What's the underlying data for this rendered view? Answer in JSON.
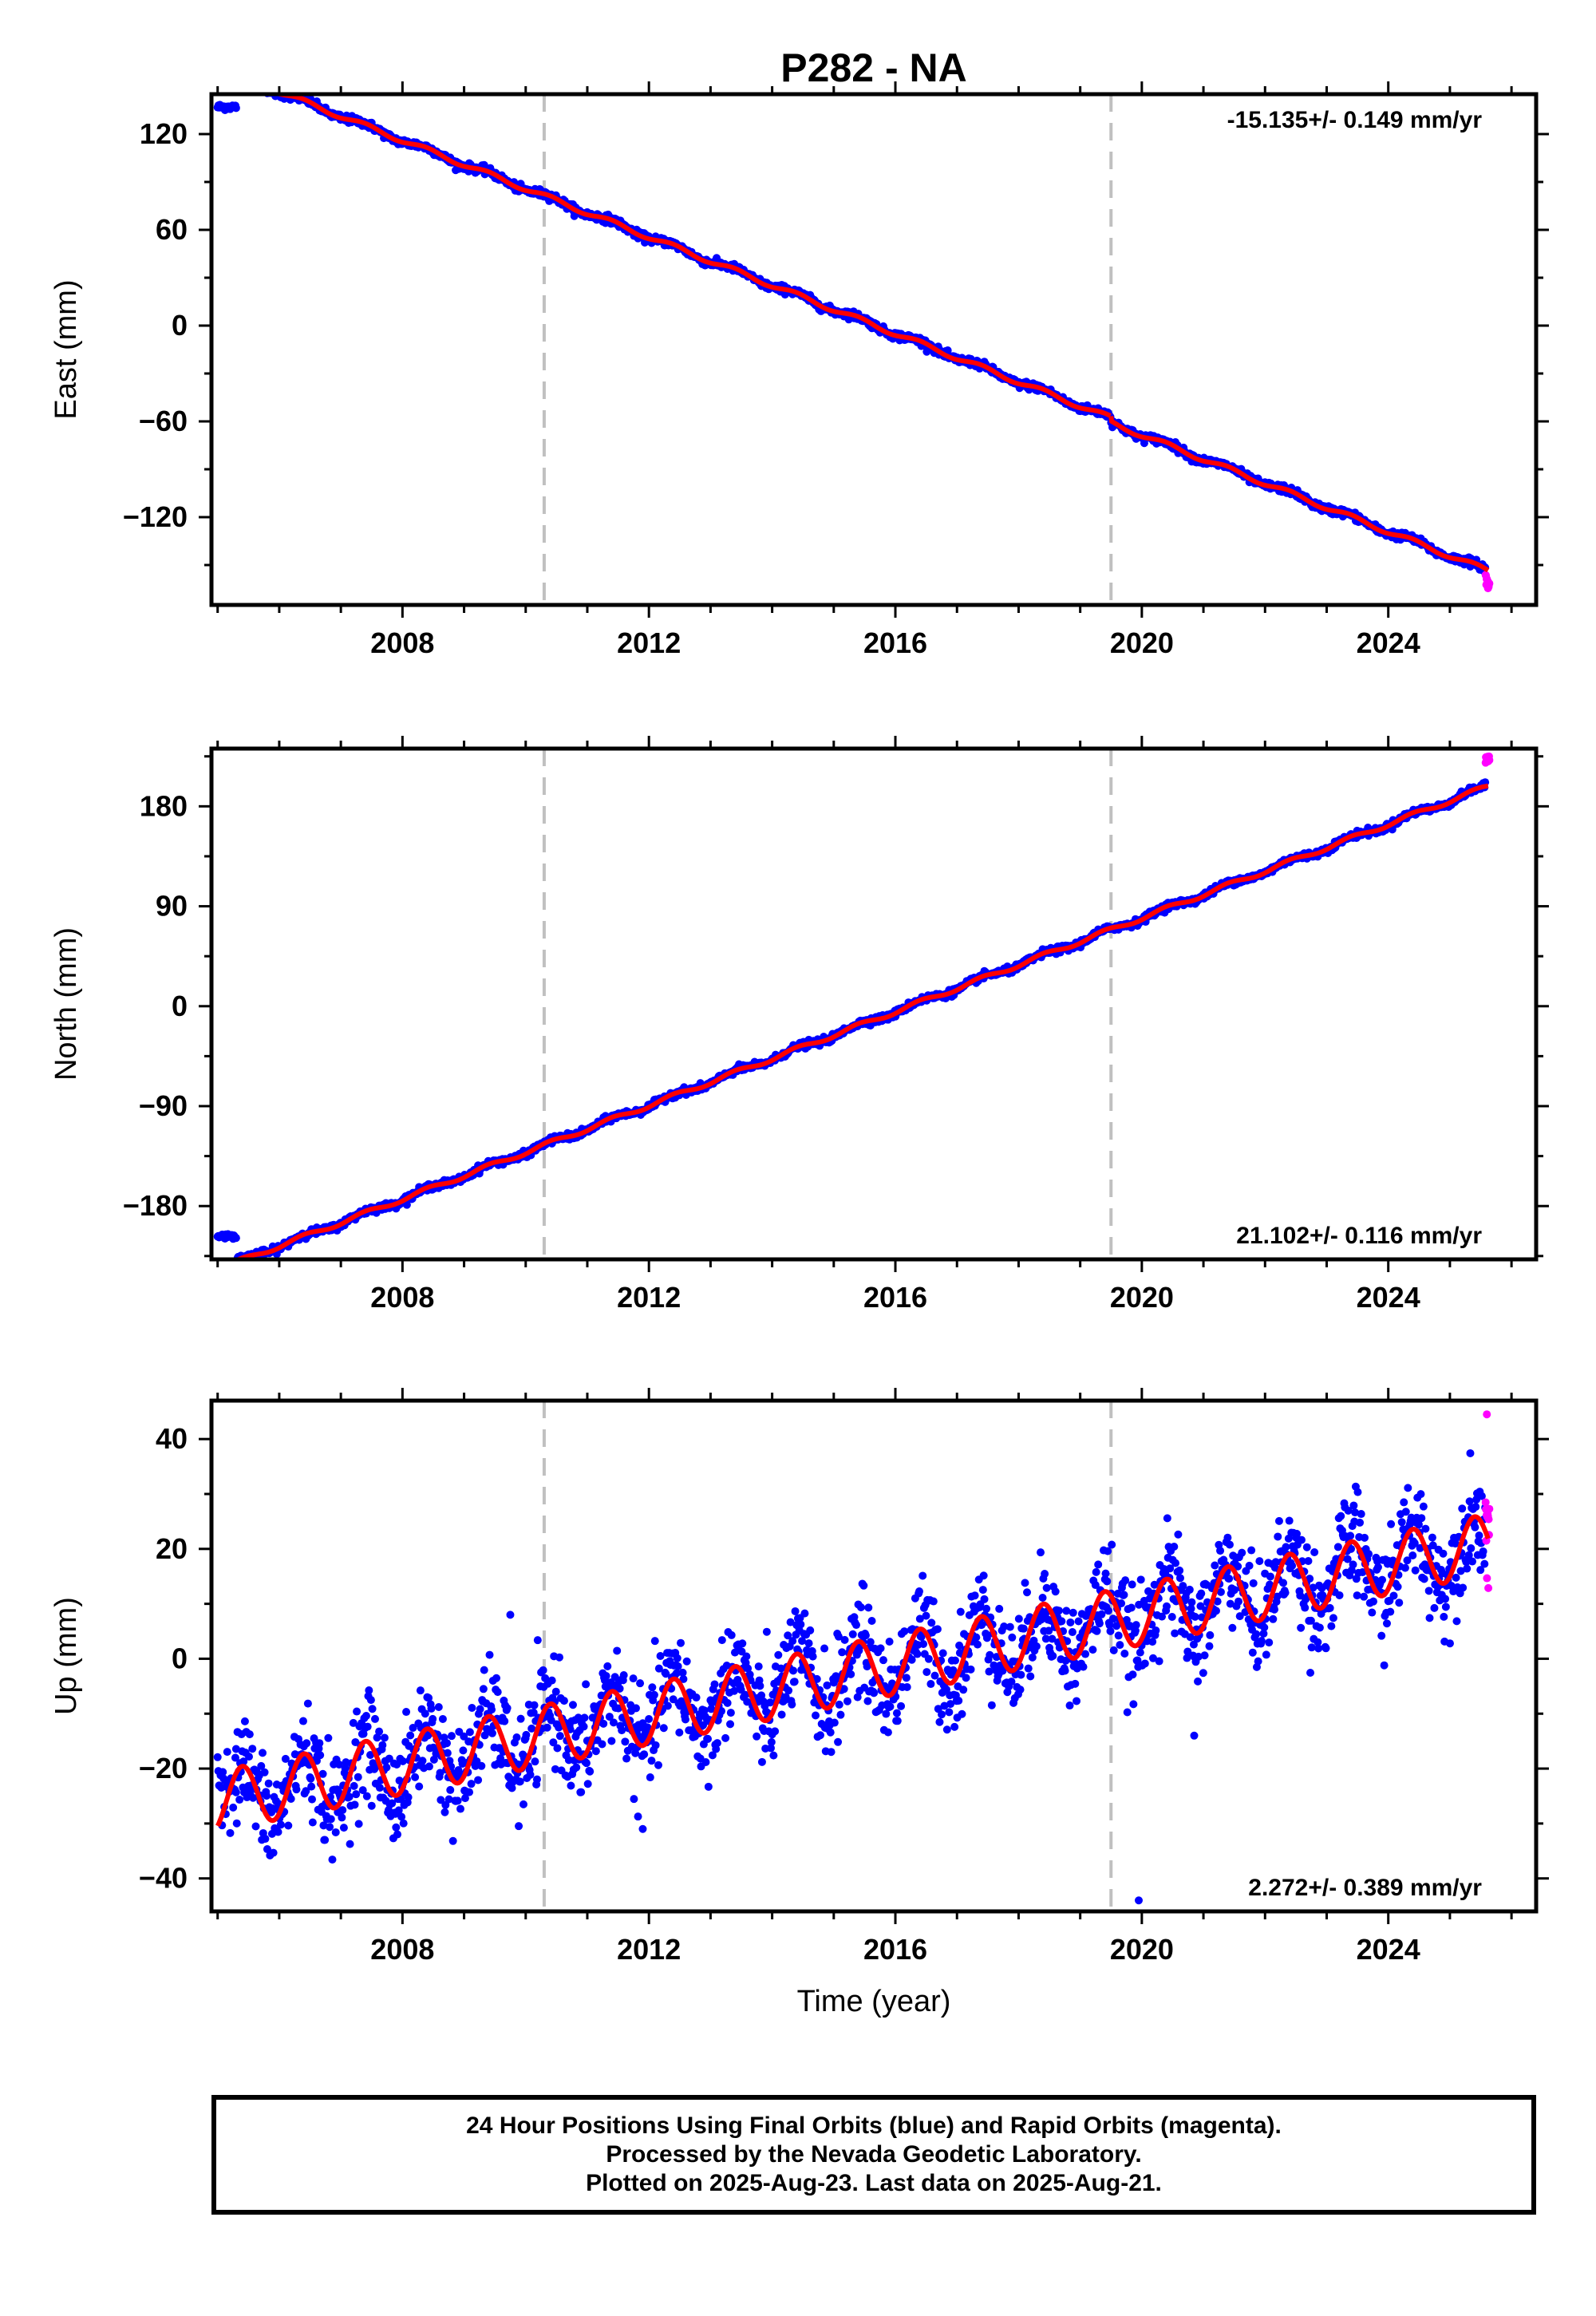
{
  "title": "P282 - NA",
  "chart_data": [
    {
      "type": "scatter",
      "ylabel": "East (mm)",
      "xlim": [
        2004.9,
        2026.4
      ],
      "ylim": [
        -175,
        145
      ],
      "xticks": [
        2008,
        2012,
        2016,
        2020,
        2024
      ],
      "yticks": [
        120,
        60,
        0,
        -60,
        -120
      ],
      "rate_text": "-15.135+/- 0.149 mm/yr",
      "rate_position": "top-right",
      "offset_epochs": [
        2010.3,
        2019.5
      ],
      "trend": {
        "rate": -15.135,
        "ref_epoch": 2016.0,
        "value_at_ref": -5,
        "seasonal_amp": 1.5
      },
      "gap_start": [
        2005.0,
        137
      ],
      "steps": [
        {
          "epoch": 2019.5,
          "offset": -3
        }
      ],
      "rapid_end_range": [
        -165,
        -156
      ],
      "scatter": 1.2
    },
    {
      "type": "scatter",
      "ylabel": "North (mm)",
      "xlim": [
        2004.9,
        2026.4
      ],
      "ylim": [
        -228,
        232
      ],
      "xticks": [
        2008,
        2012,
        2016,
        2020,
        2024
      ],
      "yticks": [
        180,
        90,
        0,
        -90,
        -180
      ],
      "rate_text": "21.102+/- 0.116 mm/yr",
      "rate_position": "bottom-right",
      "offset_epochs": [
        2010.3,
        2019.5
      ],
      "trend": {
        "rate": 21.102,
        "ref_epoch": 2016.0,
        "value_at_ref": -5,
        "seasonal_amp": 2.0
      },
      "gap_start": [
        2005.0,
        -207
      ],
      "steps": [],
      "rapid_end_range": [
        219,
        225
      ],
      "scatter": 1.5
    },
    {
      "type": "scatter",
      "ylabel": "Up (mm)",
      "xlabel": "Time (year)",
      "xlim": [
        2004.9,
        2026.4
      ],
      "ylim": [
        -46,
        47
      ],
      "xticks": [
        2008,
        2012,
        2016,
        2020,
        2024
      ],
      "yticks": [
        40,
        20,
        0,
        -20,
        -40
      ],
      "rate_text": "2.272+/- 0.389 mm/yr",
      "rate_position": "bottom-right",
      "offset_epochs": [
        2010.3,
        2019.5
      ],
      "trend": {
        "rate": 2.272,
        "ref_epoch": 2016.0,
        "value_at_ref": -1,
        "seasonal_amp": 5.5
      },
      "gap_start": [
        2005.0,
        -22
      ],
      "steps": [],
      "rapid_end_range": [
        12,
        30
      ],
      "outliers": [
        [
          2019.95,
          -44
        ],
        [
          2020.85,
          -14
        ],
        [
          2011.9,
          -31
        ],
        [
          2009.75,
          8
        ],
        [
          2025.6,
          44.5
        ]
      ],
      "scatter": 4.5
    }
  ],
  "colors": {
    "final_orbits": "#0000ff",
    "rapid_orbits": "#ff00ff",
    "model_fit": "#ff0000",
    "offset_lines": "#c0c0c0",
    "frame": "#000000"
  },
  "footer": {
    "line1": "24 Hour Positions Using Final Orbits (blue) and Rapid Orbits (magenta).",
    "line2": "Processed by the Nevada Geodetic Laboratory.",
    "line3": "Plotted on 2025-Aug-23. Last data on 2025-Aug-21."
  }
}
